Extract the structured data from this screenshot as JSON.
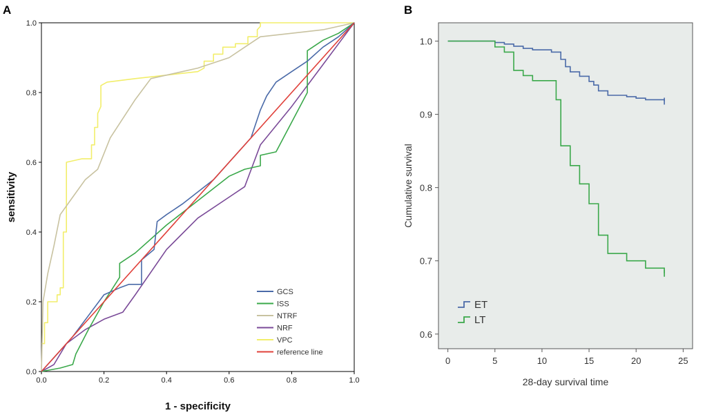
{
  "chart_data": [
    {
      "panel": "A",
      "type": "line",
      "title": "",
      "xlabel": "1 - specificity",
      "ylabel": "sensitivity",
      "xlim": [
        0,
        1
      ],
      "ylim": [
        0,
        1
      ],
      "x_ticks": [
        "0.0",
        "0.2",
        "0.4",
        "0.6",
        "0.8",
        "1.0"
      ],
      "y_ticks": [
        "0.0",
        "0.2",
        "0.4",
        "0.6",
        "0.8",
        "1.0"
      ],
      "legend_position": "bottom-right",
      "series": [
        {
          "name": "GCS",
          "color": "#4a6aa8",
          "points": [
            [
              0,
              0
            ],
            [
              0.05,
              0.05
            ],
            [
              0.1,
              0.1
            ],
            [
              0.15,
              0.16
            ],
            [
              0.2,
              0.22
            ],
            [
              0.25,
              0.24
            ],
            [
              0.28,
              0.25
            ],
            [
              0.32,
              0.25
            ],
            [
              0.32,
              0.32
            ],
            [
              0.36,
              0.35
            ],
            [
              0.37,
              0.43
            ],
            [
              0.4,
              0.45
            ],
            [
              0.45,
              0.48
            ],
            [
              0.55,
              0.55
            ],
            [
              0.6,
              0.6
            ],
            [
              0.67,
              0.67
            ],
            [
              0.7,
              0.75
            ],
            [
              0.72,
              0.79
            ],
            [
              0.75,
              0.83
            ],
            [
              0.8,
              0.86
            ],
            [
              0.85,
              0.89
            ],
            [
              0.9,
              0.93
            ],
            [
              0.95,
              0.96
            ],
            [
              1,
              1
            ]
          ]
        },
        {
          "name": "ISS",
          "color": "#3aa84a",
          "points": [
            [
              0,
              0
            ],
            [
              0.06,
              0.01
            ],
            [
              0.1,
              0.02
            ],
            [
              0.11,
              0.05
            ],
            [
              0.15,
              0.12
            ],
            [
              0.2,
              0.2
            ],
            [
              0.25,
              0.27
            ],
            [
              0.25,
              0.31
            ],
            [
              0.3,
              0.34
            ],
            [
              0.4,
              0.42
            ],
            [
              0.5,
              0.49
            ],
            [
              0.6,
              0.56
            ],
            [
              0.65,
              0.58
            ],
            [
              0.7,
              0.59
            ],
            [
              0.7,
              0.62
            ],
            [
              0.75,
              0.63
            ],
            [
              0.85,
              0.8
            ],
            [
              0.85,
              0.92
            ],
            [
              0.9,
              0.95
            ],
            [
              0.95,
              0.97
            ],
            [
              1,
              1
            ]
          ]
        },
        {
          "name": "NTRF",
          "color": "#c8c2a0",
          "points": [
            [
              0,
              0
            ],
            [
              0.005,
              0.2
            ],
            [
              0.02,
              0.28
            ],
            [
              0.04,
              0.36
            ],
            [
              0.06,
              0.45
            ],
            [
              0.1,
              0.5
            ],
            [
              0.14,
              0.55
            ],
            [
              0.18,
              0.58
            ],
            [
              0.22,
              0.67
            ],
            [
              0.3,
              0.78
            ],
            [
              0.35,
              0.84
            ],
            [
              0.45,
              0.86
            ],
            [
              0.5,
              0.87
            ],
            [
              0.6,
              0.9
            ],
            [
              0.65,
              0.93
            ],
            [
              0.7,
              0.96
            ],
            [
              0.8,
              0.97
            ],
            [
              0.9,
              0.98
            ],
            [
              0.95,
              0.99
            ],
            [
              1,
              1
            ]
          ]
        },
        {
          "name": "NRF",
          "color": "#7a4a98",
          "points": [
            [
              0,
              0
            ],
            [
              0.04,
              0.02
            ],
            [
              0.08,
              0.08
            ],
            [
              0.14,
              0.12
            ],
            [
              0.2,
              0.15
            ],
            [
              0.26,
              0.17
            ],
            [
              0.3,
              0.22
            ],
            [
              0.4,
              0.35
            ],
            [
              0.5,
              0.44
            ],
            [
              0.6,
              0.5
            ],
            [
              0.65,
              0.53
            ],
            [
              0.7,
              0.65
            ],
            [
              0.8,
              0.76
            ],
            [
              0.9,
              0.88
            ],
            [
              0.95,
              0.94
            ],
            [
              1,
              1
            ]
          ]
        },
        {
          "name": "VPC",
          "color": "#f2ee6a",
          "points": [
            [
              0,
              0.08
            ],
            [
              0.01,
              0.08
            ],
            [
              0.01,
              0.14
            ],
            [
              0.02,
              0.14
            ],
            [
              0.02,
              0.2
            ],
            [
              0.05,
              0.2
            ],
            [
              0.05,
              0.22
            ],
            [
              0.06,
              0.22
            ],
            [
              0.06,
              0.24
            ],
            [
              0.07,
              0.24
            ],
            [
              0.07,
              0.4
            ],
            [
              0.08,
              0.4
            ],
            [
              0.08,
              0.6
            ],
            [
              0.13,
              0.61
            ],
            [
              0.16,
              0.61
            ],
            [
              0.16,
              0.65
            ],
            [
              0.17,
              0.65
            ],
            [
              0.17,
              0.7
            ],
            [
              0.18,
              0.7
            ],
            [
              0.18,
              0.74
            ],
            [
              0.19,
              0.76
            ],
            [
              0.19,
              0.82
            ],
            [
              0.21,
              0.83
            ],
            [
              0.3,
              0.84
            ],
            [
              0.4,
              0.85
            ],
            [
              0.5,
              0.86
            ],
            [
              0.52,
              0.87
            ],
            [
              0.52,
              0.89
            ],
            [
              0.55,
              0.89
            ],
            [
              0.55,
              0.91
            ],
            [
              0.58,
              0.91
            ],
            [
              0.58,
              0.93
            ],
            [
              0.62,
              0.93
            ],
            [
              0.62,
              0.94
            ],
            [
              0.66,
              0.94
            ],
            [
              0.66,
              0.96
            ],
            [
              0.69,
              0.96
            ],
            [
              0.69,
              0.98
            ],
            [
              0.7,
              0.99
            ],
            [
              0.7,
              1
            ],
            [
              0.72,
              1
            ],
            [
              1,
              1
            ]
          ]
        },
        {
          "name": "reference line",
          "color": "#e0403a",
          "points": [
            [
              0,
              0
            ],
            [
              1,
              1
            ]
          ]
        }
      ]
    },
    {
      "panel": "B",
      "type": "line",
      "title": "",
      "xlabel": "28-day survival time",
      "ylabel": "Cumulative survival",
      "xlim": [
        -1,
        26
      ],
      "ylim": [
        0.58,
        1.025
      ],
      "x_ticks": [
        0,
        5,
        10,
        15,
        20,
        25
      ],
      "y_ticks": [
        0.6,
        0.7,
        0.8,
        0.9,
        1.0
      ],
      "y_tick_labels": [
        "0.6",
        "0.7",
        "0.8",
        "0.9",
        "1.0"
      ],
      "legend_position": "bottom-left",
      "series": [
        {
          "name": "ET",
          "color": "#4a6aa8",
          "steps": [
            [
              0,
              1.0
            ],
            [
              5,
              0.998
            ],
            [
              6,
              0.996
            ],
            [
              7,
              0.993
            ],
            [
              8,
              0.99
            ],
            [
              9,
              0.988
            ],
            [
              11,
              0.985
            ],
            [
              12,
              0.975
            ],
            [
              12.5,
              0.965
            ],
            [
              13,
              0.958
            ],
            [
              14,
              0.952
            ],
            [
              15,
              0.945
            ],
            [
              15.5,
              0.94
            ],
            [
              16,
              0.932
            ],
            [
              17,
              0.926
            ],
            [
              19,
              0.924
            ],
            [
              20,
              0.922
            ],
            [
              21,
              0.92
            ],
            [
              23,
              0.918
            ]
          ]
        },
        {
          "name": "LT",
          "color": "#3aa84a",
          "steps": [
            [
              0,
              1.0
            ],
            [
              5,
              0.992
            ],
            [
              6,
              0.985
            ],
            [
              7,
              0.96
            ],
            [
              8,
              0.953
            ],
            [
              9,
              0.946
            ],
            [
              11.5,
              0.92
            ],
            [
              12,
              0.857
            ],
            [
              13,
              0.83
            ],
            [
              14,
              0.805
            ],
            [
              15,
              0.778
            ],
            [
              16,
              0.735
            ],
            [
              17,
              0.71
            ],
            [
              19,
              0.7
            ],
            [
              21,
              0.69
            ],
            [
              23,
              0.683
            ]
          ]
        }
      ]
    }
  ]
}
